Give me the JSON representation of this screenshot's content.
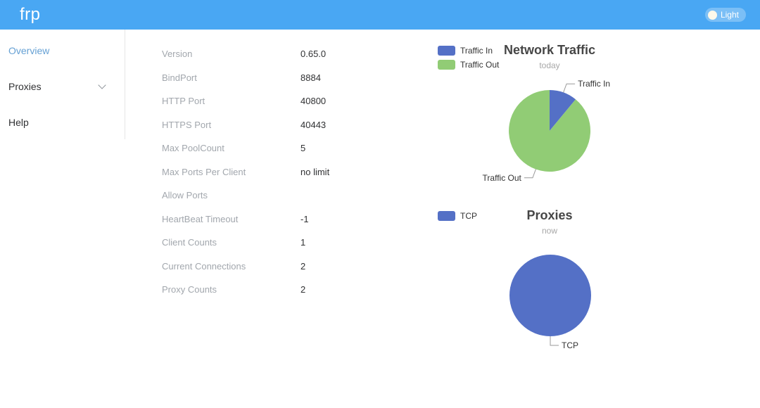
{
  "header": {
    "logo": "frp",
    "theme_label": "Light"
  },
  "sidebar": {
    "items": [
      {
        "label": "Overview",
        "active": true,
        "has_submenu": false
      },
      {
        "label": "Proxies",
        "active": false,
        "has_submenu": true
      },
      {
        "label": "Help",
        "active": false,
        "has_submenu": false
      }
    ]
  },
  "overview": {
    "fields": [
      {
        "label": "Version",
        "value": "0.65.0"
      },
      {
        "label": "BindPort",
        "value": "8884"
      },
      {
        "label": "HTTP Port",
        "value": "40800"
      },
      {
        "label": "HTTPS Port",
        "value": "40443"
      },
      {
        "label": "Max PoolCount",
        "value": "5"
      },
      {
        "label": "Max Ports Per Client",
        "value": "no limit"
      },
      {
        "label": "Allow Ports",
        "value": ""
      },
      {
        "label": "HeartBeat Timeout",
        "value": "-1"
      },
      {
        "label": "Client Counts",
        "value": "1"
      },
      {
        "label": "Current Connections",
        "value": "2"
      },
      {
        "label": "Proxy Counts",
        "value": "2"
      }
    ]
  },
  "chart_data": [
    {
      "type": "pie",
      "title": "Network Traffic",
      "subtitle": "today",
      "legend_position": "top-left",
      "series": [
        {
          "name": "Traffic In",
          "value_pct": 11,
          "color": "#5470C6"
        },
        {
          "name": "Traffic Out",
          "value_pct": 89,
          "color": "#91CC75"
        }
      ]
    },
    {
      "type": "pie",
      "title": "Proxies",
      "subtitle": "now",
      "legend_position": "top-left",
      "series": [
        {
          "name": "TCP",
          "value_pct": 100,
          "color": "#5470C6"
        }
      ]
    }
  ],
  "colors": {
    "header_bg": "#49a7f3",
    "active_menu_text": "#66a1d4",
    "chart_title": "#464646",
    "label_gray": "#a2a7ad",
    "value_dark": "#303133",
    "leader_line": "#999999"
  }
}
